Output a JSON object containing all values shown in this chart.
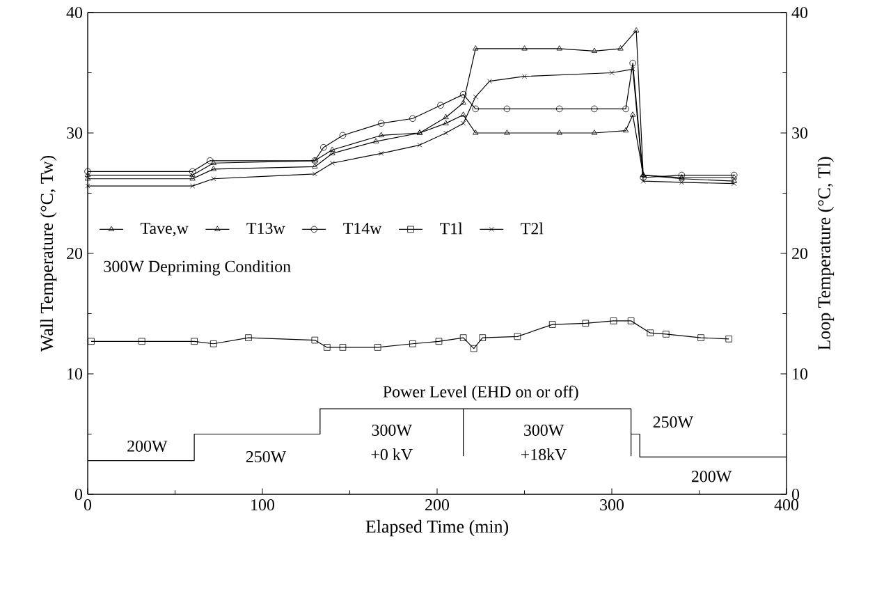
{
  "chart_data": {
    "type": "line",
    "xlabel": "Elapsed Time (min)",
    "ylabel": "Wall Temperature (°C, Tw)",
    "y2label": "Loop Temperature (°C, Tl)",
    "xlim": [
      0,
      400
    ],
    "xticks": [
      0,
      100,
      200,
      300,
      400
    ],
    "ylim": [
      0,
      40
    ],
    "yticks": [
      0,
      10,
      20,
      30,
      40
    ],
    "y2lim": [
      0,
      40
    ],
    "y2ticks": [
      0,
      10,
      20,
      30,
      40
    ],
    "legend": "left",
    "grid": false,
    "series": [
      {
        "name": "Tave,w",
        "color": "#000000",
        "marker": "triangle",
        "x": [
          0,
          60,
          72,
          130,
          140,
          165,
          190,
          205,
          215,
          222,
          240,
          270,
          290,
          308,
          312,
          318,
          340,
          370
        ],
        "values": [
          26.2,
          26.2,
          27.0,
          27.2,
          28.3,
          29.3,
          30.0,
          30.8,
          31.5,
          30.0,
          30.0,
          30.0,
          30.0,
          30.2,
          31.5,
          26.5,
          26.3,
          26.3
        ]
      },
      {
        "name": "T13w",
        "color": "#000000",
        "marker": "triangle",
        "x": [
          0,
          60,
          72,
          130,
          140,
          168,
          190,
          205,
          215,
          222,
          250,
          270,
          290,
          305,
          314,
          318,
          340,
          370
        ],
        "values": [
          26.5,
          26.5,
          27.5,
          27.7,
          28.6,
          29.8,
          30.0,
          31.3,
          32.5,
          37.0,
          37.0,
          37.0,
          36.8,
          37.0,
          38.5,
          26.5,
          26.2,
          26.0
        ]
      },
      {
        "name": "T14w",
        "color": "#000000",
        "marker": "circle",
        "x": [
          0,
          60,
          70,
          130,
          135,
          146,
          168,
          186,
          202,
          215,
          222,
          240,
          270,
          290,
          308,
          312,
          318,
          340,
          370
        ],
        "values": [
          26.8,
          26.8,
          27.7,
          27.7,
          28.8,
          29.8,
          30.8,
          31.2,
          32.3,
          33.2,
          32.0,
          32.0,
          32.0,
          32.0,
          32.0,
          35.8,
          26.3,
          26.5,
          26.5
        ]
      },
      {
        "name": "T1l",
        "color": "#000000",
        "marker": "square",
        "axis": "y2",
        "x": [
          2,
          31,
          61,
          72,
          92,
          130,
          137,
          146,
          166,
          186,
          201,
          215,
          221,
          226,
          246,
          266,
          285,
          301,
          311,
          322,
          331,
          351,
          367
        ],
        "values": [
          12.7,
          12.7,
          12.7,
          12.5,
          13.0,
          12.8,
          12.2,
          12.2,
          12.2,
          12.5,
          12.7,
          13.0,
          12.1,
          13.0,
          13.1,
          14.1,
          14.2,
          14.4,
          14.4,
          13.4,
          13.3,
          13.0,
          12.9
        ]
      },
      {
        "name": "T2l",
        "color": "#000000",
        "marker": "cross",
        "axis": "y2",
        "x": [
          0,
          60,
          72,
          130,
          140,
          168,
          190,
          205,
          215,
          222,
          230,
          250,
          300,
          312,
          318,
          340,
          370
        ],
        "values": [
          25.6,
          25.6,
          26.2,
          26.6,
          27.5,
          28.3,
          29.0,
          30.0,
          30.8,
          33.0,
          34.3,
          34.7,
          35.0,
          35.3,
          26.0,
          25.9,
          25.8
        ]
      },
      {
        "color": "#000000",
        "marker": "none",
        "x": [
          0,
          61,
          61,
          133,
          133,
          215,
          215,
          215,
          311,
          311,
          311,
          316,
          316,
          400
        ],
        "values": [
          2.8,
          2.8,
          5.0,
          5.0,
          7.1,
          7.1,
          3.2,
          7.1,
          7.1,
          3.2,
          5.0,
          5.0,
          3.1,
          3.1
        ]
      }
    ],
    "annotations": [
      "300W Depriming Condition",
      "Power Level (EHD on or off)",
      "200W",
      "250W",
      "300W",
      "+0 kV",
      "300W",
      "+18kV",
      "250W",
      "200W"
    ]
  }
}
